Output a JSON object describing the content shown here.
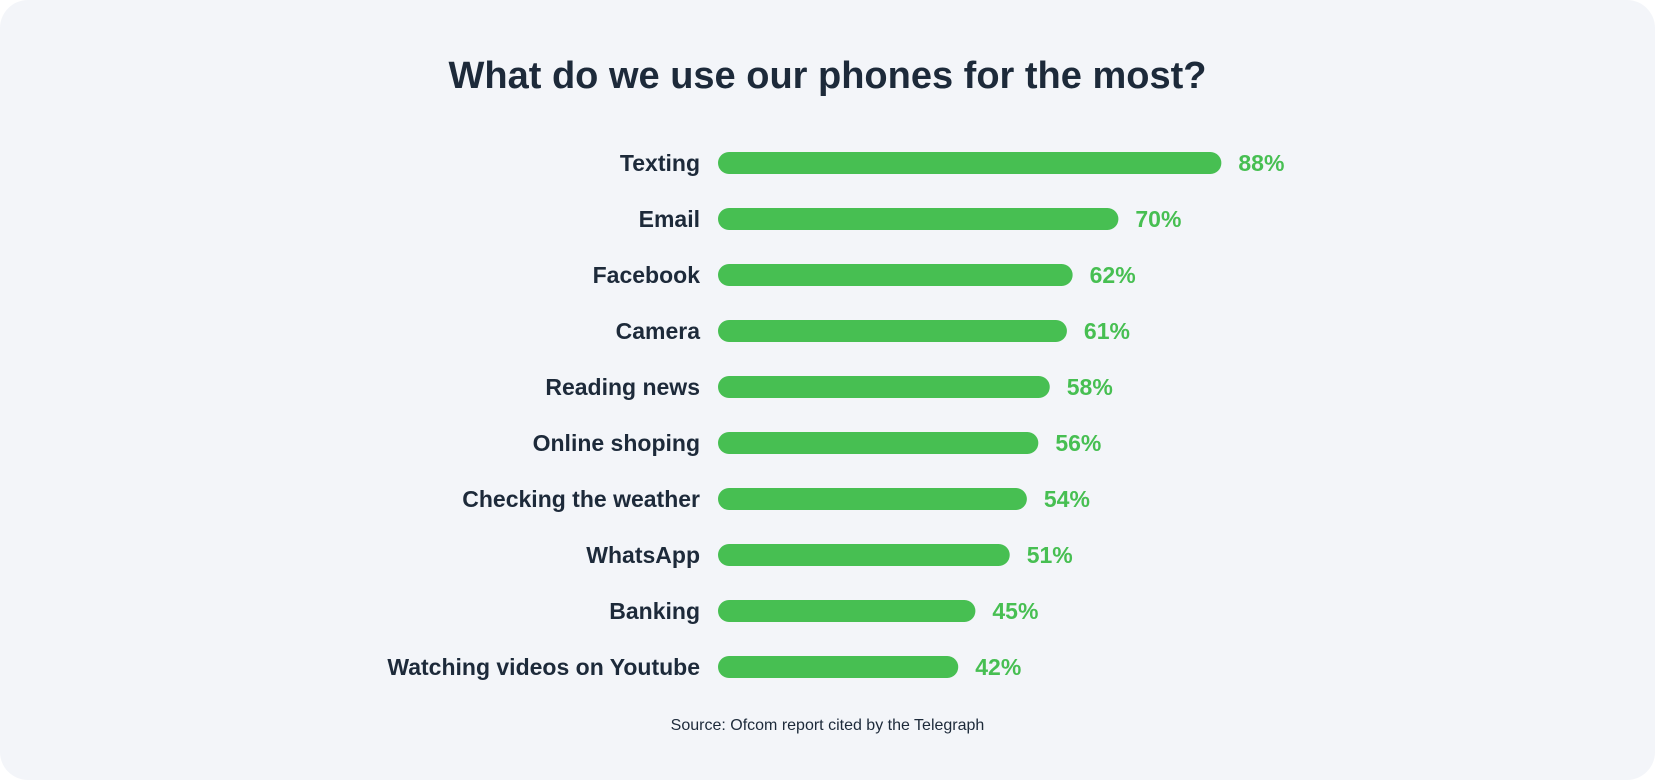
{
  "chart_data": {
    "type": "bar",
    "orientation": "horizontal",
    "title": "What do we use our phones for the most?",
    "source": "Source: Ofcom report cited by the Telegraph",
    "categories": [
      "Texting",
      "Email",
      "Facebook",
      "Camera",
      "Reading news",
      "Online shoping",
      "Checking the weather",
      "WhatsApp",
      "Banking",
      "Watching videos on Youtube"
    ],
    "values": [
      88,
      70,
      62,
      61,
      58,
      56,
      54,
      51,
      45,
      42
    ],
    "value_labels": [
      "88%",
      "70%",
      "62%",
      "61%",
      "58%",
      "56%",
      "54%",
      "51%",
      "45%",
      "42%"
    ],
    "value_unit": "%",
    "xlim": [
      0,
      100
    ],
    "grid": false,
    "legend": "none",
    "colors": {
      "bar": "#47bf52",
      "value_text": "#47bf52",
      "label_text": "#1d2a3a",
      "background": "#f3f5f9"
    }
  }
}
